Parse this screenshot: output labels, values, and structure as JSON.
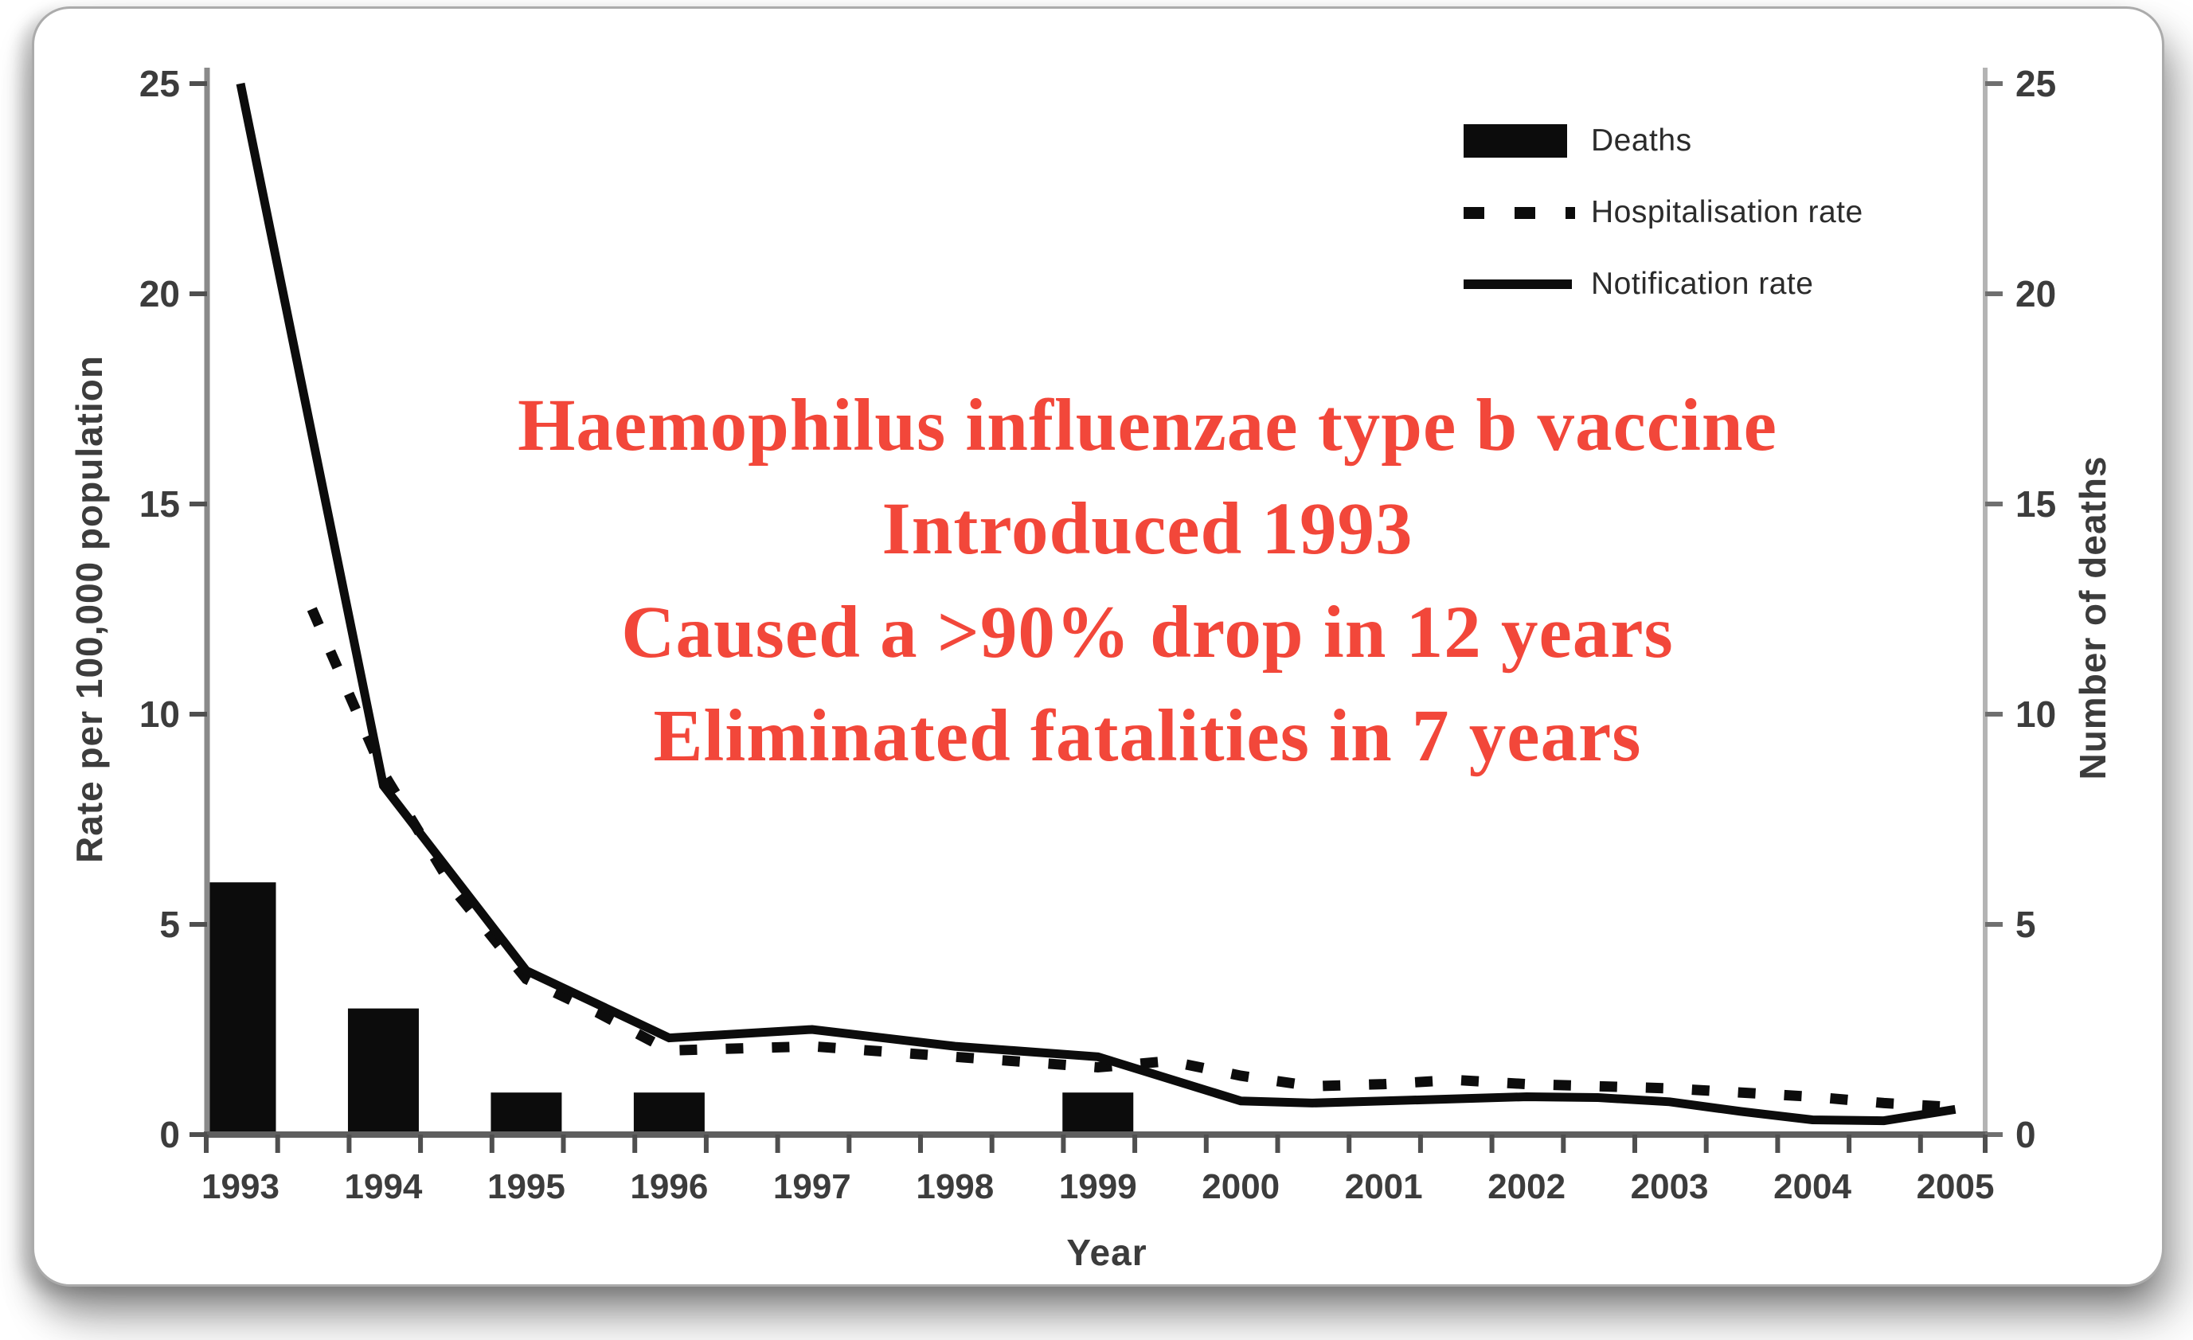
{
  "overlay": {
    "color": "#f2473a",
    "lines": [
      "Haemophilus influenzae type b vaccine",
      "Introduced 1993",
      "Caused a >90% drop in 12 years",
      "Eliminated fatalities in 7 years"
    ]
  },
  "chart_data": {
    "type": "bar+line",
    "title": "",
    "xlabel": "Year",
    "ylabel_left": "Rate per 100,000 population",
    "ylabel_right": "Number of deaths",
    "ylim": [
      0,
      25
    ],
    "y_ticks": [
      0,
      5,
      10,
      15,
      20,
      25
    ],
    "x_years": [
      1993,
      1994,
      1995,
      1996,
      1997,
      1998,
      1999,
      2000,
      2001,
      2002,
      2003,
      2004,
      2005
    ],
    "grid": false,
    "legend_position": "top-right",
    "series": [
      {
        "name": "Deaths",
        "type": "bar",
        "axis": "right",
        "color": "#0c0c0c",
        "categories": [
          1993,
          1994,
          1995,
          1996,
          1997,
          1998,
          1999,
          2000,
          2001,
          2002,
          2003,
          2004,
          2005
        ],
        "values": [
          6,
          3,
          1,
          1,
          0,
          0,
          1,
          0,
          0,
          0,
          0,
          0,
          0
        ]
      },
      {
        "name": "Hospitalisation rate",
        "type": "line",
        "style": "dashed",
        "axis": "left",
        "color": "#0c0c0c",
        "points": [
          [
            1993.5,
            12.5
          ],
          [
            1994,
            8.6
          ],
          [
            1994.5,
            5.8
          ],
          [
            1995,
            3.7
          ],
          [
            1995.5,
            2.9
          ],
          [
            1996,
            2.0
          ],
          [
            1997,
            2.1
          ],
          [
            1998,
            1.85
          ],
          [
            1999,
            1.6
          ],
          [
            1999.5,
            1.75
          ],
          [
            2000,
            1.4
          ],
          [
            2000.5,
            1.15
          ],
          [
            2001,
            1.2
          ],
          [
            2001.5,
            1.3
          ],
          [
            2002,
            1.2
          ],
          [
            2003,
            1.1
          ],
          [
            2004,
            0.9
          ],
          [
            2004.5,
            0.75
          ],
          [
            2005,
            0.65
          ]
        ]
      },
      {
        "name": "Notification rate",
        "type": "line",
        "style": "solid",
        "axis": "left",
        "color": "#0c0c0c",
        "points": [
          [
            1993,
            25
          ],
          [
            1994,
            8.3
          ],
          [
            1995,
            3.9
          ],
          [
            1996,
            2.3
          ],
          [
            1997,
            2.5
          ],
          [
            1998,
            2.1
          ],
          [
            1999,
            1.85
          ],
          [
            2000,
            0.8
          ],
          [
            2000.5,
            0.75
          ],
          [
            2001,
            0.8
          ],
          [
            2002,
            0.9
          ],
          [
            2002.5,
            0.88
          ],
          [
            2003,
            0.78
          ],
          [
            2003.5,
            0.55
          ],
          [
            2004,
            0.35
          ],
          [
            2004.5,
            0.33
          ],
          [
            2005,
            0.6
          ]
        ]
      }
    ]
  }
}
